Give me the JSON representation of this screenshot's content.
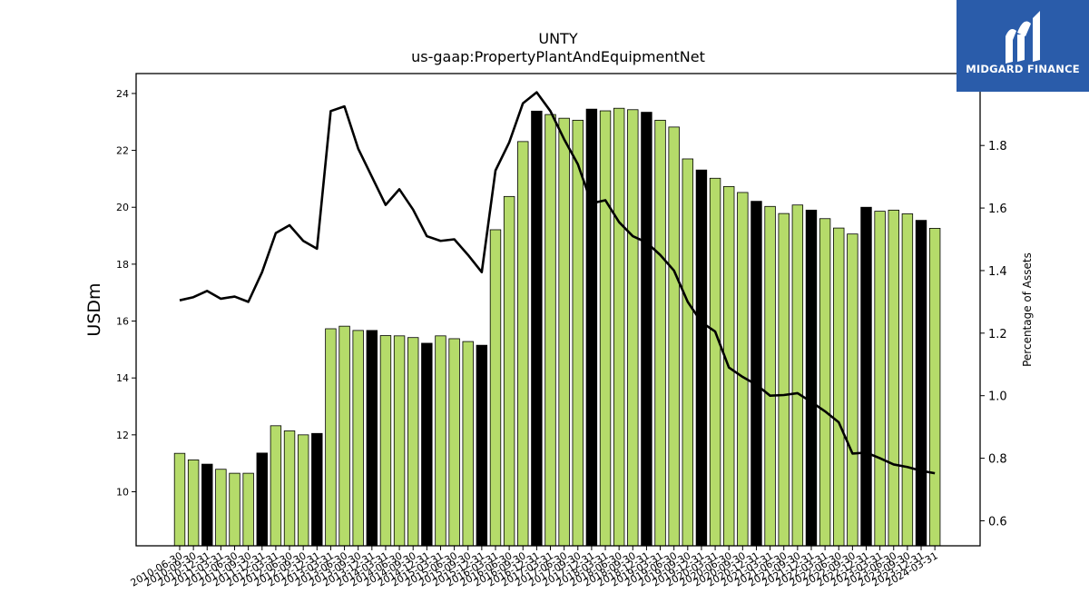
{
  "brand": {
    "name": "MIDGARD FINANCE",
    "color": "#2a5caa",
    "icon": "midgard-logo-icon"
  },
  "colors": {
    "bar_normal": "#b5db6a",
    "bar_highlight": "#000000",
    "line": "#000000"
  },
  "chart_data": {
    "type": "bar",
    "title": "UNTY",
    "subtitle": "us-gaap:PropertyPlantAndEquipmentNet",
    "ylabel": "USDm",
    "y2label": "Percentage of Assets",
    "ylim": [
      8.1,
      24.7
    ],
    "y2lim": [
      0.52,
      2.03
    ],
    "yticks": [
      10,
      12,
      14,
      16,
      18,
      20,
      22,
      24
    ],
    "y2ticks": [
      0.6,
      0.8,
      1.0,
      1.2,
      1.4,
      1.6,
      1.8
    ],
    "grid": false,
    "categories": [
      "2010-06-30",
      "2010-09-30",
      "2010-12-31",
      "2011-03-31",
      "2011-06-30",
      "2011-09-30",
      "2011-12-31",
      "2012-03-31",
      "2012-06-30",
      "2012-09-30",
      "2012-12-31",
      "2013-03-31",
      "2013-06-30",
      "2013-09-30",
      "2013-12-31",
      "2014-03-31",
      "2014-06-30",
      "2014-09-30",
      "2014-12-31",
      "2015-03-31",
      "2015-06-30",
      "2015-09-30",
      "2015-12-31",
      "2016-03-31",
      "2016-06-30",
      "2016-09-30",
      "2016-12-31",
      "2017-03-31",
      "2017-06-30",
      "2017-09-30",
      "2017-12-31",
      "2018-03-31",
      "2018-06-30",
      "2018-09-30",
      "2018-12-31",
      "2019-03-31",
      "2019-06-30",
      "2019-09-30",
      "2019-12-31",
      "2020-03-31",
      "2020-06-30",
      "2020-09-30",
      "2020-12-31",
      "2021-03-31",
      "2021-06-30",
      "2021-09-30",
      "2021-12-31",
      "2022-03-31",
      "2022-06-30",
      "2022-09-30",
      "2022-12-31",
      "2023-03-31",
      "2023-06-30",
      "2023-09-30",
      "2023-12-31",
      "2024-03-31"
    ],
    "x_tick_labels": [
      "2010-06-30",
      "2010-09-30",
      "2010-12-31",
      "2011-03-31",
      "2011-06-30",
      "2011-09-30",
      "2011-12-31",
      "2012-03-31",
      "2012-06-30",
      "2012-09-30",
      "2012-12-31",
      "2013-03-31",
      "2013-06-30",
      "2013-09-30",
      "2013-12-31",
      "2014-03-31",
      "2014-06-30",
      "2014-09-30",
      "2014-12-31",
      "2015-03-31",
      "2015-06-30",
      "2015-09-30",
      "2015-12-31",
      "2016-03-31",
      "2016-06-30",
      "2016-09-30",
      "2016-12-31",
      "2017-03-31",
      "2017-06-30",
      "2017-09-30",
      "2017-12-31",
      "2018-03-31",
      "2018-06-30",
      "2018-09-30",
      "2018-12-31",
      "2019-03-31",
      "2019-06-30",
      "2019-09-30",
      "2019-12-31",
      "2020-03-31",
      "2020-06-30",
      "2020-09-30",
      "2020-12-31",
      "2021-03-31",
      "2021-06-30",
      "2021-09-30",
      "2021-12-31",
      "2022-03-31",
      "2022-06-30",
      "2022-09-30",
      "2022-12-31",
      "2023-03-31",
      "2023-06-30",
      "2023-09-30",
      "2023-12-31",
      "2024-03-31"
    ],
    "series": [
      {
        "type": "bar",
        "axis": "left",
        "values": [
          11.35,
          11.12,
          10.97,
          10.79,
          10.65,
          10.65,
          11.36,
          12.32,
          12.14,
          12.0,
          12.05,
          15.73,
          15.82,
          15.67,
          15.67,
          15.49,
          15.48,
          15.42,
          15.22,
          15.48,
          15.38,
          15.28,
          15.15,
          19.21,
          20.38,
          22.31,
          23.38,
          23.26,
          23.13,
          23.06,
          23.45,
          23.39,
          23.48,
          23.43,
          23.34,
          23.06,
          22.82,
          21.7,
          21.31,
          21.02,
          20.73,
          20.52,
          20.21,
          20.03,
          19.78,
          20.08,
          19.9,
          19.6,
          19.27,
          19.06,
          20.0,
          19.86,
          19.9,
          19.77,
          19.54,
          19.26
        ],
        "highlighted_categories": [
          "2010-12-31",
          "2011-12-31",
          "2012-12-31",
          "2013-12-31",
          "2014-12-31",
          "2015-12-31",
          "2016-12-31",
          "2017-12-31",
          "2018-12-31",
          "2019-12-31",
          "2020-12-31",
          "2021-12-31",
          "2022-12-31",
          "2023-12-31"
        ]
      },
      {
        "type": "line",
        "axis": "right",
        "values": [
          1.305,
          1.315,
          1.335,
          1.31,
          1.317,
          1.3,
          1.395,
          1.52,
          1.545,
          1.495,
          1.47,
          1.91,
          1.925,
          1.79,
          1.7,
          1.61,
          1.66,
          1.595,
          1.51,
          1.495,
          1.5,
          1.45,
          1.395,
          1.72,
          1.81,
          1.935,
          1.97,
          1.91,
          1.82,
          1.74,
          1.615,
          1.625,
          1.555,
          1.51,
          1.49,
          1.45,
          1.4,
          1.3,
          1.235,
          1.205,
          1.09,
          1.06,
          1.035,
          1.0,
          1.002,
          1.008,
          0.98,
          0.95,
          0.915,
          0.815,
          0.818,
          0.8,
          0.78,
          0.772,
          0.76,
          0.752
        ]
      }
    ]
  }
}
